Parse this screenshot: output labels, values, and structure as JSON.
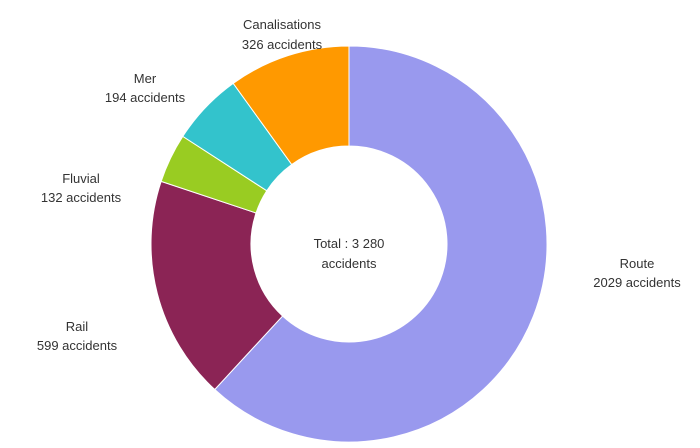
{
  "chart_data": {
    "type": "pie",
    "donut": true,
    "center_text": [
      "Total : 3 280",
      "accidents"
    ],
    "slices": [
      {
        "name": "Route",
        "value": 2029,
        "label": "2029 accidents",
        "color": "#9999ee"
      },
      {
        "name": "Rail",
        "value": 599,
        "label": "599 accidents",
        "color": "#8b2455"
      },
      {
        "name": "Fluvial",
        "value": 132,
        "label": "132 accidents",
        "color": "#99cc22"
      },
      {
        "name": "Mer",
        "value": 194,
        "label": "194 accidents",
        "color": "#33c3cc"
      },
      {
        "name": "Canalisations",
        "value": 326,
        "label": "326 accidents",
        "color": "#ff9900"
      }
    ]
  }
}
